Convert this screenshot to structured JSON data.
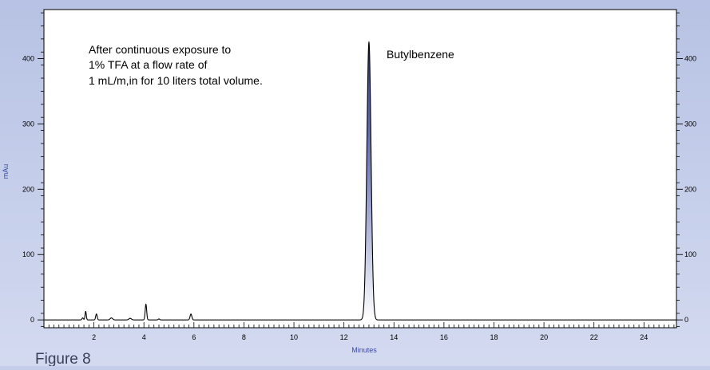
{
  "figure_caption": "Figure 8",
  "chart_data": {
    "type": "line",
    "title": "",
    "xlabel": "Minutes",
    "ylabel": "mAu",
    "xlim": [
      0,
      25.3
    ],
    "ylim": [
      -12,
      475
    ],
    "x_ticks": [
      2,
      4,
      6,
      8,
      10,
      12,
      14,
      16,
      18,
      20,
      22,
      24
    ],
    "y_ticks": [
      0,
      100,
      200,
      300,
      400
    ],
    "annotation_lines": [
      "After continuous exposure to",
      "1% TFA at a flow rate of",
      "1 mL/m,in for 10 liters total volume."
    ],
    "peak_label": "Butylbenzene",
    "line_color": "#000000",
    "fill_color": "#2c3a84",
    "background_color": "#c4cde9",
    "peaks": [
      {
        "x": 1.55,
        "height": 3,
        "width": 0.03
      },
      {
        "x": 1.67,
        "height": 13,
        "width": 0.025
      },
      {
        "x": 2.1,
        "height": 9,
        "width": 0.03
      },
      {
        "x": 2.7,
        "height": 3,
        "width": 0.05
      },
      {
        "x": 3.45,
        "height": 2.5,
        "width": 0.05
      },
      {
        "x": 4.08,
        "height": 24,
        "width": 0.03
      },
      {
        "x": 4.6,
        "height": 1.5,
        "width": 0.03
      },
      {
        "x": 5.88,
        "height": 9,
        "width": 0.035
      },
      {
        "x": 13.0,
        "height": 425,
        "width": 0.085
      }
    ]
  }
}
